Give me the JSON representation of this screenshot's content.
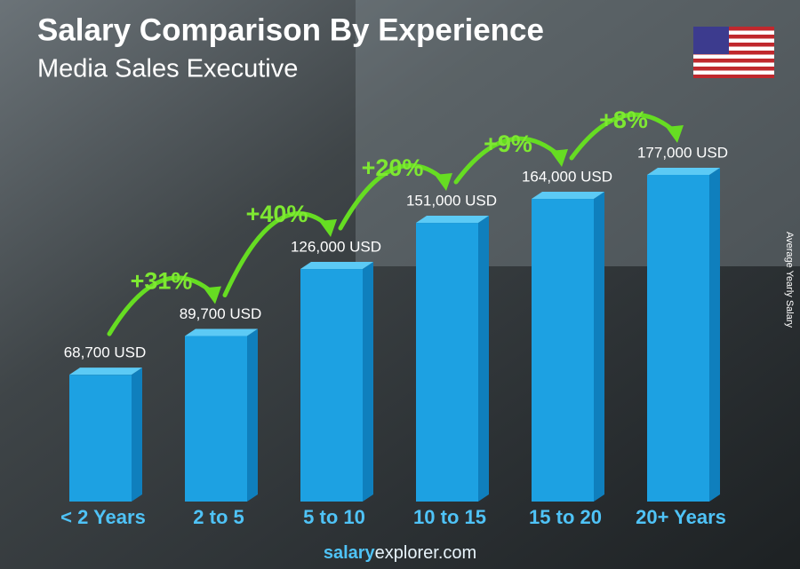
{
  "chart_data": {
    "type": "bar",
    "title": "Salary Comparison By Experience",
    "subtitle": "Media Sales Executive",
    "y_axis_label": "Average Yearly Salary",
    "categories": [
      "< 2 Years",
      "2 to 5",
      "5 to 10",
      "10 to 15",
      "15 to 20",
      "20+ Years"
    ],
    "values": [
      68700,
      89700,
      126000,
      151000,
      164000,
      177000
    ],
    "value_labels": [
      "68,700 USD",
      "89,700 USD",
      "126,000 USD",
      "151,000 USD",
      "164,000 USD",
      "177,000 USD"
    ],
    "annotations": [
      "+31%",
      "+40%",
      "+20%",
      "+9%",
      "+8%"
    ],
    "color": "#1da1e2"
  },
  "footer": {
    "brand": "salary",
    "domain": "explorer.com"
  }
}
